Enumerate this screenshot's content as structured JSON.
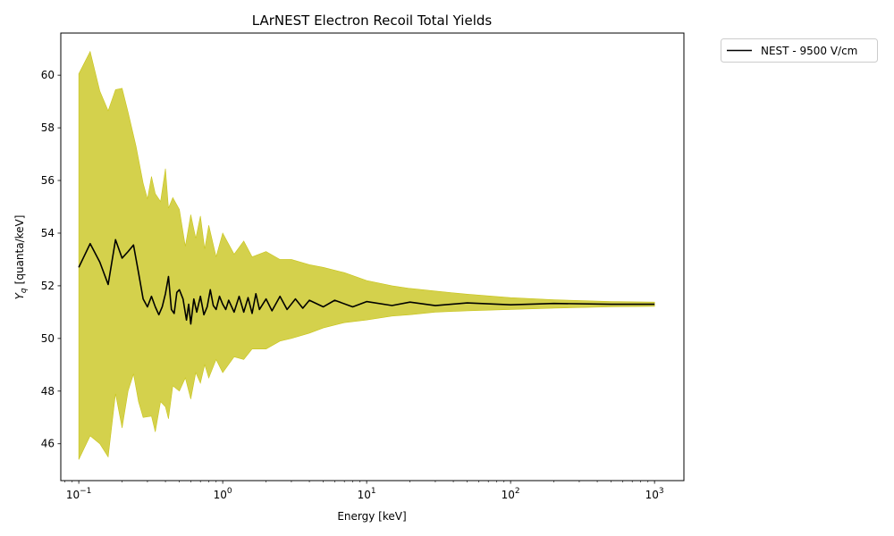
{
  "chart_data": {
    "type": "area",
    "title": "LArNEST Electron Recoil Total Yields",
    "xlabel": "Energy [keV]",
    "ylabel": "[quanta/keV]",
    "ylabel_symbol": "Y",
    "ylabel_subscript": "q",
    "xscale": "log",
    "xlim": [
      0.075,
      1600
    ],
    "ylim": [
      44.6,
      61.6
    ],
    "grid": false,
    "legend_position": "outside-top-right",
    "x_ticks": [
      {
        "value": 0.1,
        "base": "10",
        "exp": "−1"
      },
      {
        "value": 1,
        "base": "10",
        "exp": "0"
      },
      {
        "value": 10,
        "base": "10",
        "exp": "1"
      },
      {
        "value": 100,
        "base": "10",
        "exp": "2"
      },
      {
        "value": 1000,
        "base": "10",
        "exp": "3"
      }
    ],
    "y_ticks": [
      "46",
      "48",
      "50",
      "52",
      "54",
      "56",
      "58",
      "60"
    ],
    "series": [
      {
        "name": "NEST - 9500 V/cm",
        "color": "#000000",
        "band_color": "#c8c41a",
        "mean": [
          [
            0.1,
            52.7
          ],
          [
            0.12,
            53.6
          ],
          [
            0.14,
            52.9
          ],
          [
            0.16,
            52.05
          ],
          [
            0.18,
            53.75
          ],
          [
            0.2,
            53.05
          ],
          [
            0.22,
            53.3
          ],
          [
            0.24,
            53.55
          ],
          [
            0.26,
            52.5
          ],
          [
            0.28,
            51.5
          ],
          [
            0.3,
            51.2
          ],
          [
            0.32,
            51.6
          ],
          [
            0.34,
            51.2
          ],
          [
            0.36,
            50.9
          ],
          [
            0.38,
            51.2
          ],
          [
            0.4,
            51.7
          ],
          [
            0.42,
            52.35
          ],
          [
            0.44,
            51.1
          ],
          [
            0.46,
            50.95
          ],
          [
            0.48,
            51.75
          ],
          [
            0.5,
            51.85
          ],
          [
            0.53,
            51.5
          ],
          [
            0.56,
            50.7
          ],
          [
            0.58,
            51.3
          ],
          [
            0.6,
            50.55
          ],
          [
            0.63,
            51.5
          ],
          [
            0.66,
            51.0
          ],
          [
            0.7,
            51.6
          ],
          [
            0.74,
            50.9
          ],
          [
            0.78,
            51.2
          ],
          [
            0.82,
            51.85
          ],
          [
            0.86,
            51.25
          ],
          [
            0.9,
            51.1
          ],
          [
            0.95,
            51.6
          ],
          [
            1.0,
            51.3
          ],
          [
            1.05,
            51.1
          ],
          [
            1.1,
            51.45
          ],
          [
            1.2,
            51.0
          ],
          [
            1.3,
            51.6
          ],
          [
            1.4,
            51.0
          ],
          [
            1.5,
            51.55
          ],
          [
            1.6,
            50.95
          ],
          [
            1.7,
            51.7
          ],
          [
            1.8,
            51.1
          ],
          [
            2.0,
            51.5
          ],
          [
            2.2,
            51.05
          ],
          [
            2.5,
            51.6
          ],
          [
            2.8,
            51.1
          ],
          [
            3.2,
            51.5
          ],
          [
            3.6,
            51.15
          ],
          [
            4.0,
            51.45
          ],
          [
            5.0,
            51.2
          ],
          [
            6.0,
            51.45
          ],
          [
            8.0,
            51.2
          ],
          [
            10.0,
            51.4
          ],
          [
            15.0,
            51.25
          ],
          [
            20.0,
            51.38
          ],
          [
            30.0,
            51.25
          ],
          [
            50.0,
            51.35
          ],
          [
            100.0,
            51.28
          ],
          [
            200.0,
            51.33
          ],
          [
            500.0,
            51.3
          ],
          [
            1000.0,
            51.3
          ]
        ],
        "upper": [
          [
            0.1,
            60.05
          ],
          [
            0.12,
            60.9
          ],
          [
            0.14,
            59.4
          ],
          [
            0.16,
            58.65
          ],
          [
            0.18,
            59.45
          ],
          [
            0.2,
            59.5
          ],
          [
            0.22,
            58.6
          ],
          [
            0.25,
            57.3
          ],
          [
            0.28,
            55.9
          ],
          [
            0.3,
            55.3
          ],
          [
            0.32,
            56.15
          ],
          [
            0.34,
            55.5
          ],
          [
            0.37,
            55.2
          ],
          [
            0.4,
            56.45
          ],
          [
            0.42,
            54.95
          ],
          [
            0.45,
            55.35
          ],
          [
            0.5,
            54.9
          ],
          [
            0.55,
            53.5
          ],
          [
            0.6,
            54.7
          ],
          [
            0.65,
            53.8
          ],
          [
            0.7,
            54.65
          ],
          [
            0.75,
            53.4
          ],
          [
            0.8,
            54.3
          ],
          [
            0.9,
            53.1
          ],
          [
            1.0,
            54.0
          ],
          [
            1.2,
            53.2
          ],
          [
            1.4,
            53.7
          ],
          [
            1.6,
            53.1
          ],
          [
            2.0,
            53.3
          ],
          [
            2.5,
            53.0
          ],
          [
            3.0,
            53.0
          ],
          [
            4.0,
            52.8
          ],
          [
            5.0,
            52.7
          ],
          [
            7.0,
            52.5
          ],
          [
            10.0,
            52.2
          ],
          [
            15.0,
            52.0
          ],
          [
            20.0,
            51.9
          ],
          [
            30.0,
            51.8
          ],
          [
            50.0,
            51.68
          ],
          [
            100.0,
            51.55
          ],
          [
            200.0,
            51.47
          ],
          [
            500.0,
            51.4
          ],
          [
            1000.0,
            51.38
          ]
        ],
        "lower": [
          [
            0.1,
            45.4
          ],
          [
            0.12,
            46.3
          ],
          [
            0.14,
            46.0
          ],
          [
            0.16,
            45.5
          ],
          [
            0.18,
            47.9
          ],
          [
            0.2,
            46.6
          ],
          [
            0.22,
            48.0
          ],
          [
            0.24,
            48.65
          ],
          [
            0.26,
            47.6
          ],
          [
            0.28,
            47.0
          ],
          [
            0.32,
            47.05
          ],
          [
            0.34,
            46.45
          ],
          [
            0.37,
            47.6
          ],
          [
            0.4,
            47.4
          ],
          [
            0.42,
            46.95
          ],
          [
            0.45,
            48.2
          ],
          [
            0.5,
            48.0
          ],
          [
            0.55,
            48.5
          ],
          [
            0.6,
            47.7
          ],
          [
            0.65,
            48.7
          ],
          [
            0.7,
            48.3
          ],
          [
            0.75,
            49.0
          ],
          [
            0.8,
            48.5
          ],
          [
            0.9,
            49.2
          ],
          [
            1.0,
            48.7
          ],
          [
            1.2,
            49.3
          ],
          [
            1.4,
            49.2
          ],
          [
            1.6,
            49.6
          ],
          [
            2.0,
            49.6
          ],
          [
            2.5,
            49.9
          ],
          [
            3.0,
            50.0
          ],
          [
            4.0,
            50.2
          ],
          [
            5.0,
            50.4
          ],
          [
            7.0,
            50.6
          ],
          [
            10.0,
            50.7
          ],
          [
            15.0,
            50.85
          ],
          [
            20.0,
            50.9
          ],
          [
            30.0,
            51.0
          ],
          [
            50.0,
            51.05
          ],
          [
            100.0,
            51.1
          ],
          [
            200.0,
            51.15
          ],
          [
            500.0,
            51.2
          ],
          [
            1000.0,
            51.22
          ]
        ]
      }
    ]
  }
}
